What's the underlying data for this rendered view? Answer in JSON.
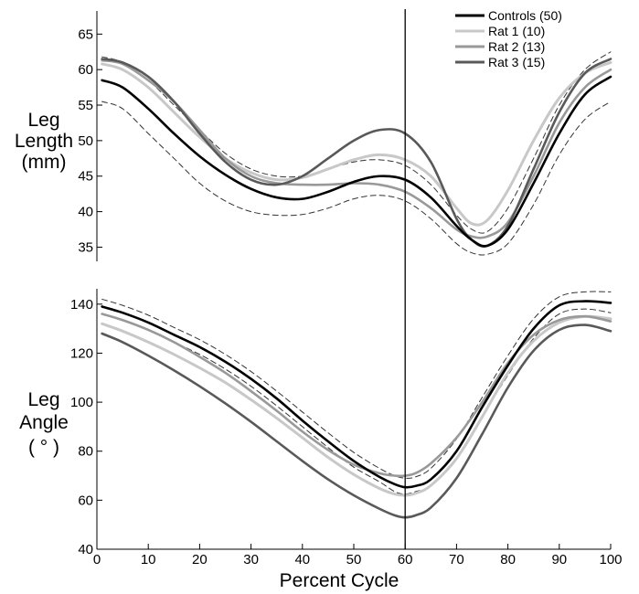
{
  "chart_data": [
    {
      "type": "line",
      "ylabel_lines": [
        "Leg",
        "Length",
        "(mm)"
      ],
      "ylim": [
        33,
        68
      ],
      "yticks": [
        35,
        40,
        45,
        50,
        55,
        60,
        65
      ],
      "xlim": [
        0,
        100
      ],
      "vertical_line_x": 60,
      "legend_position": "top-right",
      "legend": [
        "Controls (50)",
        "Rat 1 (10)",
        "Rat 2 (13)",
        "Rat 3 (15)"
      ],
      "series": [
        {
          "name": "Controls (50)",
          "color": "#000000",
          "width": 2.6,
          "x": [
            1,
            5,
            10,
            15,
            20,
            25,
            30,
            35,
            40,
            45,
            50,
            55,
            60,
            65,
            70,
            73,
            76,
            80,
            85,
            90,
            95,
            100
          ],
          "y": [
            58.5,
            57.5,
            54.5,
            51,
            47.8,
            45.2,
            43.2,
            42,
            41.8,
            42.8,
            44.2,
            45,
            44.5,
            42,
            38,
            36,
            35.2,
            37.5,
            44,
            51,
            56.5,
            59
          ]
        },
        {
          "name": "Rat 1 (10)",
          "color": "#c8c8c8",
          "width": 3,
          "x": [
            1,
            5,
            10,
            15,
            20,
            25,
            30,
            35,
            40,
            45,
            50,
            55,
            60,
            65,
            70,
            73,
            76,
            80,
            85,
            90,
            95,
            100
          ],
          "y": [
            60.8,
            60,
            57.5,
            54,
            50.5,
            47.5,
            45.5,
            44.5,
            44.8,
            46,
            47.3,
            48,
            47.3,
            45,
            40.5,
            38.3,
            38.8,
            43,
            50,
            56,
            59.5,
            61
          ]
        },
        {
          "name": "Rat 2 (13)",
          "color": "#999999",
          "width": 2.6,
          "x": [
            1,
            5,
            10,
            15,
            20,
            25,
            30,
            35,
            40,
            45,
            50,
            55,
            60,
            65,
            70,
            73,
            76,
            80,
            85,
            90,
            95,
            100
          ],
          "y": [
            61.3,
            60.8,
            58.5,
            55.5,
            51.5,
            47.5,
            45,
            44,
            43.8,
            43.8,
            44,
            43.8,
            42.8,
            40.5,
            37.5,
            36.5,
            36.5,
            38.5,
            45,
            52.5,
            57.5,
            60
          ]
        },
        {
          "name": "Rat 3 (15)",
          "color": "#595959",
          "width": 2.6,
          "x": [
            1,
            5,
            10,
            15,
            20,
            25,
            30,
            35,
            40,
            45,
            50,
            55,
            60,
            65,
            70,
            73,
            76,
            80,
            85,
            90,
            95,
            100
          ],
          "y": [
            61.5,
            61,
            59,
            55.5,
            51,
            47,
            44.5,
            43.8,
            45,
            47.5,
            50,
            51.5,
            51,
            47,
            39,
            36,
            35.2,
            38,
            46,
            54,
            59.5,
            61.5
          ]
        },
        {
          "name": "",
          "color": "#333333",
          "width": 1,
          "dashed": true,
          "x": [
            1,
            5,
            10,
            15,
            20,
            25,
            30,
            35,
            40,
            45,
            50,
            55,
            60,
            65,
            70,
            73,
            76,
            80,
            85,
            90,
            95,
            100
          ],
          "y": [
            61.8,
            61,
            58.5,
            55,
            51.5,
            48.2,
            46,
            45,
            45,
            46,
            47,
            47.3,
            46.5,
            43.8,
            39.5,
            37.5,
            37.2,
            40.5,
            47.5,
            55,
            60,
            62.5
          ]
        },
        {
          "name": "",
          "color": "#333333",
          "width": 1,
          "dashed": true,
          "x": [
            1,
            5,
            10,
            15,
            20,
            25,
            30,
            35,
            40,
            45,
            50,
            55,
            60,
            65,
            70,
            73,
            76,
            80,
            85,
            90,
            95,
            100
          ],
          "y": [
            55.5,
            54.5,
            51,
            47.5,
            44,
            41.5,
            40,
            39.5,
            39.6,
            40.5,
            41.8,
            42.3,
            41.5,
            39,
            35.5,
            34.2,
            34,
            35.5,
            41,
            48,
            53,
            55.5
          ]
        }
      ]
    },
    {
      "type": "line",
      "xlabel": "Percent Cycle",
      "ylabel_lines": [
        "Leg",
        "Angle",
        "( ° )"
      ],
      "ylim": [
        40,
        150
      ],
      "yticks": [
        40,
        60,
        80,
        100,
        120,
        140
      ],
      "xlim": [
        0,
        100
      ],
      "xticks": [
        0,
        10,
        20,
        30,
        40,
        50,
        60,
        70,
        80,
        90,
        100
      ],
      "vertical_line_x": 60,
      "series": [
        {
          "name": "Controls (50)",
          "color": "#000000",
          "width": 2.6,
          "x": [
            1,
            5,
            10,
            15,
            20,
            25,
            30,
            35,
            40,
            45,
            50,
            55,
            58,
            60,
            62,
            65,
            70,
            75,
            80,
            85,
            90,
            95,
            100
          ],
          "y": [
            139,
            136.5,
            132.5,
            127.5,
            122.5,
            116.5,
            109.5,
            101.5,
            92.5,
            84,
            76,
            69.5,
            66.5,
            65.3,
            65.8,
            68.5,
            80,
            98,
            115,
            130,
            139.5,
            141.2,
            140.5
          ]
        },
        {
          "name": "Rat 1 (10)",
          "color": "#c8c8c8",
          "width": 3,
          "x": [
            1,
            5,
            10,
            15,
            20,
            25,
            30,
            35,
            40,
            45,
            50,
            55,
            58,
            60,
            62,
            65,
            70,
            75,
            80,
            85,
            90,
            95,
            100
          ],
          "y": [
            132,
            129,
            124.5,
            119.5,
            114,
            108,
            101,
            93.5,
            85.5,
            77.5,
            70.5,
            64.8,
            62.5,
            62,
            62.8,
            66,
            77,
            94,
            112,
            125,
            132.5,
            135,
            134
          ]
        },
        {
          "name": "Rat 2 (13)",
          "color": "#999999",
          "width": 2.6,
          "x": [
            1,
            5,
            10,
            15,
            20,
            25,
            30,
            35,
            40,
            45,
            50,
            55,
            58,
            60,
            62,
            65,
            70,
            75,
            80,
            85,
            90,
            95,
            100
          ],
          "y": [
            136,
            133.5,
            129.5,
            124.5,
            118.5,
            112,
            104.5,
            96.5,
            88,
            80.5,
            74.5,
            71,
            70,
            70,
            71,
            75,
            85.5,
            100,
            116,
            127.5,
            133.5,
            135,
            133
          ]
        },
        {
          "name": "Rat 3 (15)",
          "color": "#595959",
          "width": 2.6,
          "x": [
            1,
            5,
            10,
            15,
            20,
            25,
            30,
            35,
            40,
            45,
            50,
            55,
            58,
            60,
            62,
            65,
            70,
            75,
            80,
            85,
            90,
            95,
            100
          ],
          "y": [
            128,
            124.5,
            119,
            113,
            106.5,
            99.5,
            92,
            84,
            76,
            68.5,
            62,
            56.5,
            53.8,
            53,
            53.8,
            57,
            69,
            87,
            106,
            121,
            129.5,
            131.5,
            129
          ]
        },
        {
          "name": "",
          "color": "#333333",
          "width": 1,
          "dashed": true,
          "x": [
            1,
            5,
            10,
            15,
            20,
            25,
            30,
            35,
            40,
            45,
            50,
            55,
            58,
            60,
            62,
            65,
            70,
            75,
            80,
            85,
            90,
            95,
            100
          ],
          "y": [
            142,
            139.5,
            135.5,
            130.5,
            125.5,
            119.5,
            112.5,
            104.5,
            96,
            87.5,
            79.5,
            73,
            70,
            69,
            69.5,
            73,
            85,
            102,
            119,
            134,
            143,
            145,
            145
          ]
        },
        {
          "name": "",
          "color": "#333333",
          "width": 1,
          "dashed": true,
          "x": [
            1,
            5,
            10,
            15,
            20,
            25,
            30,
            35,
            40,
            45,
            50,
            55,
            58,
            60,
            62,
            65,
            70,
            75,
            80,
            85,
            90,
            95,
            100
          ],
          "y": [
            136,
            133.5,
            129.5,
            124.5,
            119.5,
            113.5,
            106.5,
            98.5,
            90,
            81.5,
            73.5,
            67.5,
            63.5,
            62.5,
            63.5,
            66,
            76.5,
            94,
            111,
            126,
            136,
            138,
            136.5
          ]
        }
      ]
    }
  ]
}
